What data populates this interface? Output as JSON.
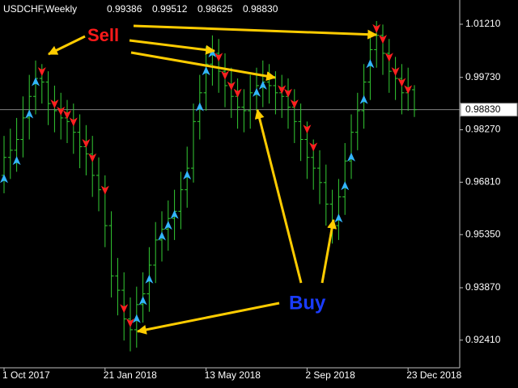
{
  "chart_data": {
    "type": "ohlc",
    "title": "USDCHF,Weekly",
    "header_values": [
      0.99386,
      0.99512,
      0.98625
    ],
    "last_price": {
      "value": 0.9883,
      "label": "0.98830"
    },
    "categories": [
      "1 Oct 2017",
      null,
      null,
      null,
      null,
      null,
      null,
      null,
      null,
      null,
      null,
      null,
      null,
      null,
      null,
      null,
      "21 Jan 2018",
      null,
      null,
      null,
      null,
      null,
      null,
      null,
      null,
      null,
      null,
      null,
      null,
      null,
      null,
      null,
      "13 May 2018",
      null,
      null,
      null,
      null,
      null,
      null,
      null,
      null,
      null,
      null,
      null,
      null,
      null,
      null,
      null,
      "2 Sep 2018",
      null,
      null,
      null,
      null,
      null,
      null,
      null,
      null,
      null,
      null,
      null,
      null,
      null,
      null,
      null,
      "23 Dec 2018",
      null
    ],
    "open": [
      0.97,
      0.975,
      0.977,
      0.98,
      0.986,
      0.992,
      0.997,
      0.996,
      0.99,
      0.988,
      0.986,
      0.985,
      0.982,
      0.978,
      0.976,
      0.97,
      0.966,
      0.956,
      0.942,
      0.938,
      0.93,
      0.927,
      0.934,
      0.937,
      0.945,
      0.952,
      0.955,
      0.958,
      0.96,
      0.966,
      0.972,
      0.985,
      0.993,
      1.001,
      1.004,
      0.999,
      0.995,
      0.992,
      0.989,
      0.988,
      0.993,
      0.995,
      0.996,
      0.995,
      0.993,
      0.992,
      0.989,
      0.985,
      0.98,
      0.975,
      0.972,
      0.968,
      0.962,
      0.956,
      0.964,
      0.974,
      0.982,
      0.988,
      0.996,
      1.005,
      1.009,
      1.004,
      0.999,
      0.997,
      0.993,
      0.99386
    ],
    "high": [
      0.981,
      0.983,
      0.986,
      0.992,
      0.998,
      1.002,
      1.001,
      0.999,
      0.995,
      0.993,
      0.991,
      0.99,
      0.987,
      0.984,
      0.981,
      0.975,
      0.97,
      0.96,
      0.947,
      0.943,
      0.936,
      0.939,
      0.943,
      0.95,
      0.957,
      0.96,
      0.963,
      0.966,
      0.971,
      0.978,
      0.99,
      0.998,
      1.006,
      1.009,
      1.008,
      1.004,
      1.0,
      0.997,
      0.994,
      0.998,
      1.0,
      1.002,
      1.001,
      0.999,
      0.998,
      0.997,
      0.994,
      0.99,
      0.985,
      0.98,
      0.977,
      0.973,
      0.966,
      0.969,
      0.979,
      0.987,
      0.993,
      1.001,
      1.01,
      1.013,
      1.012,
      1.008,
      1.003,
      1.001,
      1.0,
      0.99512
    ],
    "low": [
      0.965,
      0.969,
      0.971,
      0.975,
      0.98,
      0.987,
      0.99,
      0.984,
      0.982,
      0.98,
      0.979,
      0.976,
      0.972,
      0.97,
      0.964,
      0.96,
      0.95,
      0.936,
      0.931,
      0.924,
      0.921,
      0.922,
      0.929,
      0.932,
      0.94,
      0.946,
      0.949,
      0.952,
      0.955,
      0.961,
      0.968,
      0.98,
      0.988,
      0.995,
      0.993,
      0.989,
      0.986,
      0.983,
      0.982,
      0.983,
      0.988,
      0.989,
      0.99,
      0.987,
      0.986,
      0.983,
      0.979,
      0.974,
      0.969,
      0.966,
      0.962,
      0.956,
      0.951,
      0.952,
      0.959,
      0.969,
      0.977,
      0.983,
      0.991,
      1.0,
      0.998,
      0.993,
      0.991,
      0.987,
      0.988,
      0.98625
    ],
    "close": [
      0.975,
      0.977,
      0.98,
      0.986,
      0.992,
      0.997,
      0.996,
      0.99,
      0.988,
      0.986,
      0.985,
      0.982,
      0.978,
      0.976,
      0.97,
      0.966,
      0.956,
      0.942,
      0.938,
      0.93,
      0.927,
      0.934,
      0.937,
      0.945,
      0.952,
      0.955,
      0.958,
      0.96,
      0.966,
      0.972,
      0.985,
      0.993,
      1.001,
      1.004,
      0.999,
      0.995,
      0.992,
      0.989,
      0.988,
      0.993,
      0.995,
      0.996,
      0.995,
      0.993,
      0.992,
      0.989,
      0.985,
      0.98,
      0.975,
      0.972,
      0.968,
      0.962,
      0.956,
      0.964,
      0.974,
      0.982,
      0.988,
      0.996,
      1.005,
      1.009,
      1.004,
      0.999,
      0.997,
      0.993,
      0.99386,
      0.9883
    ],
    "bar_color": "#33cc33",
    "buy_signals": {
      "color": "#33b5ff",
      "bars": [
        0,
        2,
        4,
        5,
        21,
        22,
        23,
        25,
        26,
        27,
        29,
        31,
        32,
        33,
        40,
        41,
        53,
        54,
        55,
        57,
        58
      ],
      "values": [
        0.969,
        0.974,
        0.987,
        0.996,
        0.93,
        0.935,
        0.941,
        0.953,
        0.956,
        0.959,
        0.97,
        0.989,
        0.999,
        1.004,
        0.993,
        0.995,
        0.958,
        0.967,
        0.975,
        0.991,
        1.001
      ]
    },
    "sell_signals": {
      "color": "#ff2020",
      "bars": [
        6,
        8,
        9,
        10,
        11,
        13,
        14,
        16,
        19,
        20,
        34,
        35,
        36,
        37,
        44,
        45,
        46,
        48,
        49,
        59,
        60,
        61,
        62,
        63,
        64
      ],
      "values": [
        0.999,
        0.99,
        0.988,
        0.987,
        0.985,
        0.979,
        0.975,
        0.966,
        0.933,
        0.929,
        1.003,
        0.998,
        0.995,
        0.993,
        0.994,
        0.993,
        0.99,
        0.983,
        0.978,
        1.011,
        1.008,
        1.003,
        0.999,
        0.996,
        0.994
      ]
    },
    "ylim": [
      0.9164,
      1.01885
    ],
    "yticks": [
      {
        "value": 1.0121,
        "label": "1.01210"
      },
      {
        "value": 0.9973,
        "label": "0.99730"
      },
      {
        "value": 0.9827,
        "label": "0.98270"
      },
      {
        "value": 0.9681,
        "label": "0.96810"
      },
      {
        "value": 0.9535,
        "label": "0.95350"
      },
      {
        "value": 0.9387,
        "label": "0.93870"
      },
      {
        "value": 0.9241,
        "label": "0.92410"
      }
    ],
    "annotations": {
      "sell": "Sell",
      "buy": "Buy"
    }
  }
}
